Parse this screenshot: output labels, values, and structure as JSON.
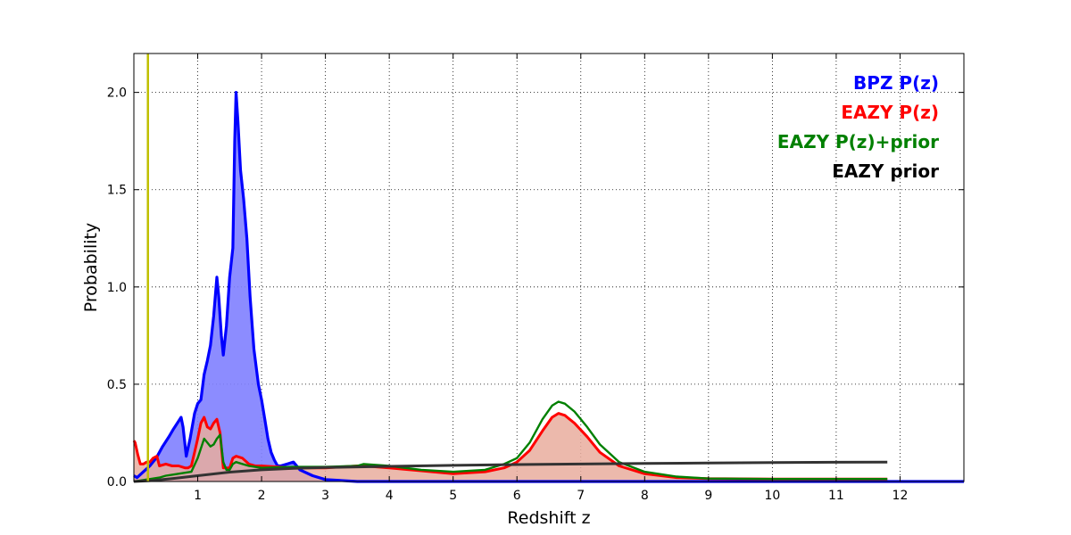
{
  "chart_data": {
    "type": "line",
    "title": "",
    "xlabel": "Redshift z",
    "ylabel": "Probability",
    "xlim": [
      0,
      13
    ],
    "ylim": [
      0,
      2.2
    ],
    "x_ticks": [
      1,
      2,
      3,
      4,
      5,
      6,
      7,
      8,
      9,
      10,
      11,
      12
    ],
    "x_tick_labels": [
      "1",
      "2",
      "3",
      "4",
      "5",
      "6",
      "7",
      "8",
      "9",
      "10",
      "11",
      "12"
    ],
    "y_ticks": [
      0,
      0.5,
      1.0,
      1.5,
      2.0
    ],
    "y_tick_labels": [
      "0.0",
      "0.5",
      "1.0",
      "1.5",
      "2.0"
    ],
    "grid": true,
    "legend_position": "top-right",
    "vertical_marker": {
      "x": 0.22,
      "color": "#bfbf00"
    },
    "series": [
      {
        "name": "BPZ P(z)",
        "color": "#0000ff",
        "fill": "#7f7fff",
        "x": [
          0.0,
          0.05,
          0.15,
          0.25,
          0.35,
          0.45,
          0.55,
          0.62,
          0.7,
          0.74,
          0.77,
          0.82,
          0.88,
          0.95,
          1.0,
          1.05,
          1.1,
          1.15,
          1.2,
          1.25,
          1.3,
          1.33,
          1.37,
          1.4,
          1.45,
          1.5,
          1.55,
          1.58,
          1.6,
          1.63,
          1.67,
          1.72,
          1.77,
          1.82,
          1.88,
          1.95,
          2.0,
          2.05,
          2.1,
          2.15,
          2.2,
          2.25,
          2.3,
          2.4,
          2.5,
          2.6,
          2.8,
          3.0,
          3.5,
          4.0,
          13.0
        ],
        "values": [
          0.03,
          0.02,
          0.05,
          0.08,
          0.12,
          0.18,
          0.23,
          0.27,
          0.31,
          0.33,
          0.28,
          0.13,
          0.22,
          0.35,
          0.4,
          0.42,
          0.55,
          0.62,
          0.7,
          0.85,
          1.05,
          0.95,
          0.75,
          0.65,
          0.8,
          1.05,
          1.2,
          1.75,
          2.0,
          1.85,
          1.6,
          1.45,
          1.25,
          0.95,
          0.68,
          0.5,
          0.42,
          0.32,
          0.22,
          0.15,
          0.11,
          0.08,
          0.08,
          0.09,
          0.1,
          0.06,
          0.03,
          0.01,
          0.0,
          0.0,
          0.0
        ]
      },
      {
        "name": "EAZY P(z)",
        "color": "#ff0000",
        "fill": "#e9ad9d",
        "x": [
          0.0,
          0.02,
          0.06,
          0.1,
          0.15,
          0.2,
          0.25,
          0.3,
          0.36,
          0.4,
          0.5,
          0.6,
          0.7,
          0.8,
          0.85,
          0.9,
          0.95,
          1.0,
          1.05,
          1.1,
          1.15,
          1.2,
          1.25,
          1.3,
          1.35,
          1.4,
          1.45,
          1.5,
          1.55,
          1.6,
          1.7,
          1.8,
          1.9,
          2.0,
          2.5,
          3.0,
          3.5,
          3.6,
          4.0,
          4.5,
          5.0,
          5.5,
          5.8,
          6.0,
          6.2,
          6.4,
          6.55,
          6.65,
          6.75,
          6.9,
          7.1,
          7.3,
          7.6,
          8.0,
          8.5,
          9.0,
          10.0,
          11.0,
          11.8
        ],
        "values": [
          0.21,
          0.2,
          0.14,
          0.09,
          0.09,
          0.1,
          0.1,
          0.12,
          0.13,
          0.08,
          0.09,
          0.08,
          0.08,
          0.07,
          0.07,
          0.08,
          0.15,
          0.22,
          0.3,
          0.33,
          0.28,
          0.27,
          0.3,
          0.32,
          0.25,
          0.07,
          0.07,
          0.07,
          0.12,
          0.13,
          0.12,
          0.09,
          0.08,
          0.08,
          0.07,
          0.07,
          0.08,
          0.08,
          0.07,
          0.055,
          0.04,
          0.05,
          0.07,
          0.1,
          0.16,
          0.26,
          0.33,
          0.35,
          0.34,
          0.3,
          0.23,
          0.15,
          0.08,
          0.04,
          0.02,
          0.015,
          0.013,
          0.013,
          0.013
        ]
      },
      {
        "name": "EAZY P(z)+prior",
        "color": "#008000",
        "x": [
          0.0,
          0.1,
          0.2,
          0.3,
          0.4,
          0.5,
          0.6,
          0.7,
          0.8,
          0.9,
          1.0,
          1.05,
          1.1,
          1.15,
          1.2,
          1.25,
          1.3,
          1.35,
          1.4,
          1.45,
          1.5,
          1.55,
          1.6,
          1.7,
          1.8,
          1.9,
          2.0,
          2.5,
          3.0,
          3.5,
          3.6,
          4.0,
          4.5,
          5.0,
          5.5,
          5.8,
          6.0,
          6.2,
          6.4,
          6.55,
          6.65,
          6.75,
          6.9,
          7.1,
          7.3,
          7.6,
          8.0,
          8.5,
          9.0,
          10.0,
          11.0,
          11.8
        ],
        "values": [
          0.0,
          0.005,
          0.01,
          0.015,
          0.02,
          0.03,
          0.035,
          0.04,
          0.045,
          0.05,
          0.12,
          0.17,
          0.22,
          0.2,
          0.18,
          0.19,
          0.22,
          0.24,
          0.1,
          0.06,
          0.06,
          0.09,
          0.1,
          0.09,
          0.08,
          0.075,
          0.07,
          0.075,
          0.075,
          0.08,
          0.09,
          0.08,
          0.06,
          0.05,
          0.06,
          0.09,
          0.12,
          0.2,
          0.32,
          0.39,
          0.41,
          0.4,
          0.36,
          0.28,
          0.19,
          0.1,
          0.05,
          0.025,
          0.015,
          0.013,
          0.013,
          0.013
        ]
      },
      {
        "name": "EAZY prior",
        "color": "#333333",
        "x": [
          0.0,
          0.3,
          0.6,
          1.0,
          1.5,
          2.0,
          2.5,
          3.0,
          4.0,
          5.0,
          6.0,
          7.0,
          8.0,
          9.0,
          10.0,
          11.0,
          11.8
        ],
        "values": [
          0.0,
          0.005,
          0.015,
          0.03,
          0.048,
          0.06,
          0.068,
          0.072,
          0.078,
          0.083,
          0.087,
          0.09,
          0.093,
          0.095,
          0.097,
          0.099,
          0.1
        ]
      }
    ]
  }
}
